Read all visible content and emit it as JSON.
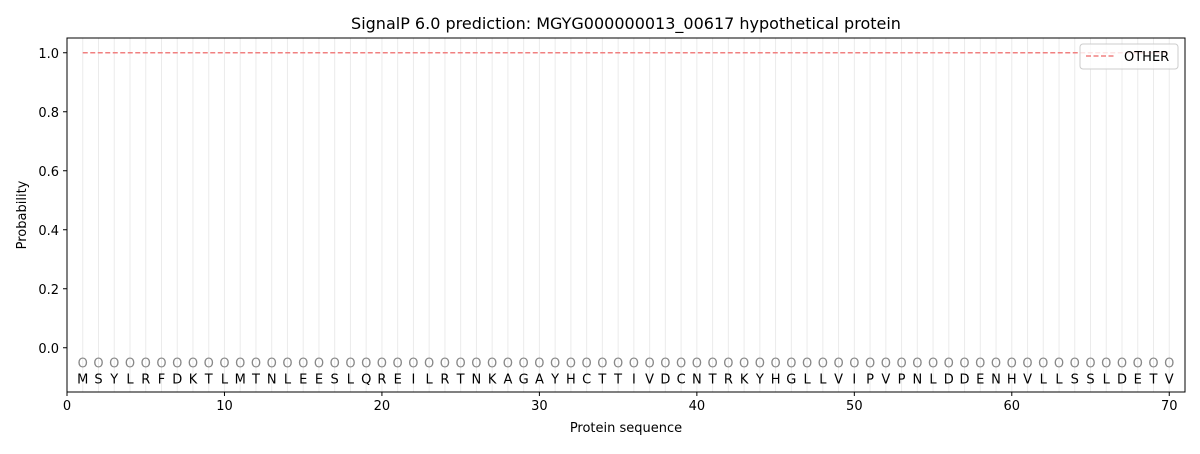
{
  "chart_data": {
    "type": "line",
    "title": "SignalP 6.0 prediction: MGYG000000013_00617 hypothetical protein",
    "xlabel": "Protein sequence",
    "ylabel": "Probability",
    "xlim": [
      0,
      71
    ],
    "ylim": [
      -0.15,
      1.05
    ],
    "xticks": [
      0,
      10,
      20,
      30,
      40,
      50,
      60,
      70
    ],
    "yticks": [
      0.0,
      0.2,
      0.4,
      0.6,
      0.8,
      1.0
    ],
    "ytick_labels": [
      "0.0",
      "0.2",
      "0.4",
      "0.6",
      "0.8",
      "1.0"
    ],
    "grid": "vertical lines at each residue",
    "legend_position": "top-right",
    "sequence": [
      "M",
      "S",
      "Y",
      "L",
      "R",
      "F",
      "D",
      "K",
      "T",
      "L",
      "M",
      "T",
      "N",
      "L",
      "E",
      "E",
      "S",
      "L",
      "Q",
      "R",
      "E",
      "I",
      "L",
      "R",
      "T",
      "N",
      "K",
      "A",
      "G",
      "A",
      "Y",
      "H",
      "C",
      "T",
      "T",
      "I",
      "V",
      "D",
      "C",
      "N",
      "T",
      "R",
      "K",
      "Y",
      "H",
      "G",
      "L",
      "L",
      "V",
      "I",
      "P",
      "V",
      "P",
      "N",
      "L",
      "D",
      "D",
      "E",
      "N",
      "H",
      "V",
      "L",
      "L",
      "S",
      "S",
      "L",
      "D",
      "E",
      "T",
      "V"
    ],
    "predicted_label": "O",
    "series": [
      {
        "name": "OTHER",
        "color": "#f08080",
        "style": "dashed",
        "x_start": 1,
        "x_end": 70,
        "value": 1.0
      }
    ]
  }
}
